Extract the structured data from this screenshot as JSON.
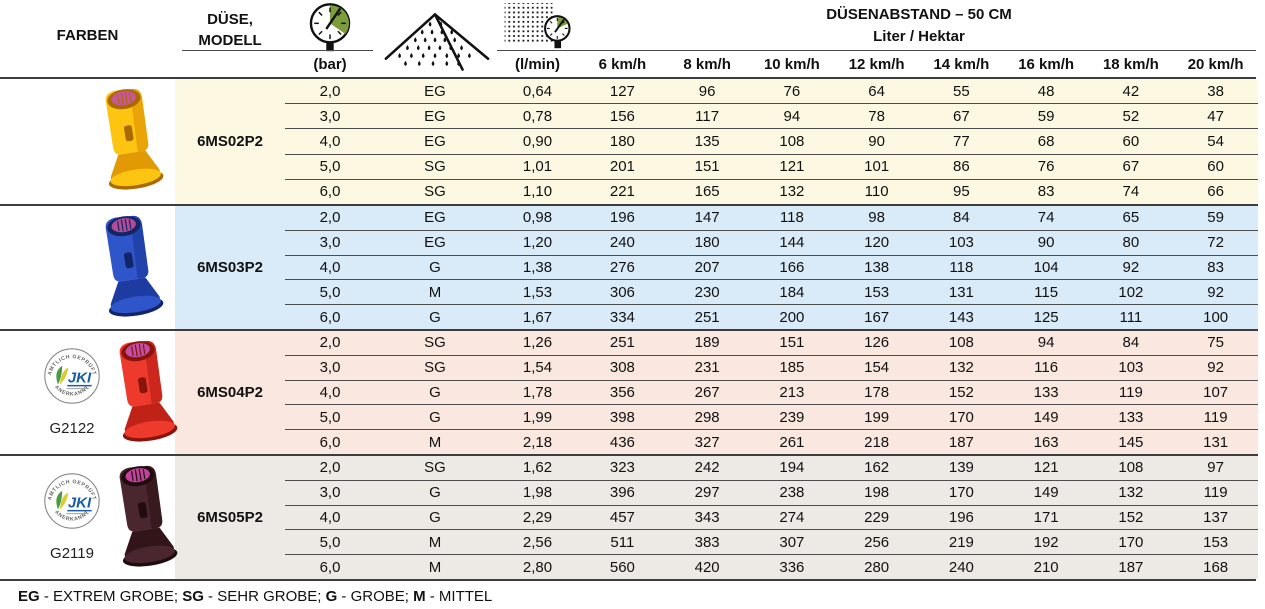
{
  "header": {
    "farben_label": "FARBEN",
    "duese_line1": "DÜSE,",
    "duese_line2": "MODELL",
    "pressure_unit": "(bar)",
    "flow_unit": "(l/min)",
    "spacing_title": "DÜSENABSTAND – 50 CM",
    "spacing_subtitle": "Liter / Hektar",
    "speed_labels": [
      "6 km/h",
      "8 km/h",
      "10 km/h",
      "12 km/h",
      "14 km/h",
      "16 km/h",
      "18 km/h",
      "20 km/h"
    ],
    "icons": {
      "pressure": "pressure-gauge-icon",
      "spray": "spray-cone-icon",
      "flow": "flow-rate-timer-icon"
    },
    "accent_green": "#7d9c3c"
  },
  "blocks": [
    {
      "model": "6MS02P2",
      "color_name": "yellow",
      "bg": "#fcf8e2",
      "nozzle": {
        "body": "#fdc511",
        "shade": "#e29a04",
        "dark": "#a96b00",
        "insert": "#c9559f"
      },
      "cert_code": "",
      "rows": [
        {
          "bar": "2,0",
          "size": "EG",
          "lmin": "0,64",
          "values": [
            "127",
            "96",
            "76",
            "64",
            "55",
            "48",
            "42",
            "38"
          ]
        },
        {
          "bar": "3,0",
          "size": "EG",
          "lmin": "0,78",
          "values": [
            "156",
            "117",
            "94",
            "78",
            "67",
            "59",
            "52",
            "47"
          ]
        },
        {
          "bar": "4,0",
          "size": "EG",
          "lmin": "0,90",
          "values": [
            "180",
            "135",
            "108",
            "90",
            "77",
            "68",
            "60",
            "54"
          ]
        },
        {
          "bar": "5,0",
          "size": "SG",
          "lmin": "1,01",
          "values": [
            "201",
            "151",
            "121",
            "101",
            "86",
            "76",
            "67",
            "60"
          ]
        },
        {
          "bar": "6,0",
          "size": "SG",
          "lmin": "1,10",
          "values": [
            "221",
            "165",
            "132",
            "110",
            "95",
            "83",
            "74",
            "66"
          ]
        }
      ]
    },
    {
      "model": "6MS03P2",
      "color_name": "blue",
      "bg": "#d9eaf8",
      "nozzle": {
        "body": "#2f55cb",
        "shade": "#1d3ba0",
        "dark": "#122566",
        "insert": "#b44b97"
      },
      "cert_code": "",
      "rows": [
        {
          "bar": "2,0",
          "size": "EG",
          "lmin": "0,98",
          "values": [
            "196",
            "147",
            "118",
            "98",
            "84",
            "74",
            "65",
            "59"
          ]
        },
        {
          "bar": "3,0",
          "size": "EG",
          "lmin": "1,20",
          "values": [
            "240",
            "180",
            "144",
            "120",
            "103",
            "90",
            "80",
            "72"
          ]
        },
        {
          "bar": "4,0",
          "size": "G",
          "lmin": "1,38",
          "values": [
            "276",
            "207",
            "166",
            "138",
            "118",
            "104",
            "92",
            "83"
          ]
        },
        {
          "bar": "5,0",
          "size": "M",
          "lmin": "1,53",
          "values": [
            "306",
            "230",
            "184",
            "153",
            "131",
            "115",
            "102",
            "92"
          ]
        },
        {
          "bar": "6,0",
          "size": "G",
          "lmin": "1,67",
          "values": [
            "334",
            "251",
            "200",
            "167",
            "143",
            "125",
            "111",
            "100"
          ]
        }
      ]
    },
    {
      "model": "6MS04P2",
      "color_name": "red",
      "bg": "#fae7df",
      "nozzle": {
        "body": "#ee3a2c",
        "shade": "#c02217",
        "dark": "#8a130c",
        "insert": "#c050a5"
      },
      "cert_code": "G2122",
      "rows": [
        {
          "bar": "2,0",
          "size": "SG",
          "lmin": "1,26",
          "values": [
            "251",
            "189",
            "151",
            "126",
            "108",
            "94",
            "84",
            "75"
          ]
        },
        {
          "bar": "3,0",
          "size": "SG",
          "lmin": "1,54",
          "values": [
            "308",
            "231",
            "185",
            "154",
            "132",
            "116",
            "103",
            "92"
          ]
        },
        {
          "bar": "4,0",
          "size": "G",
          "lmin": "1,78",
          "values": [
            "356",
            "267",
            "213",
            "178",
            "152",
            "133",
            "119",
            "107"
          ]
        },
        {
          "bar": "5,0",
          "size": "G",
          "lmin": "1,99",
          "values": [
            "398",
            "298",
            "239",
            "199",
            "170",
            "149",
            "133",
            "119"
          ]
        },
        {
          "bar": "6,0",
          "size": "M",
          "lmin": "2,18",
          "values": [
            "436",
            "327",
            "261",
            "218",
            "187",
            "163",
            "145",
            "131"
          ]
        }
      ]
    },
    {
      "model": "6MS05P2",
      "color_name": "dark-brown",
      "bg": "#edeae5",
      "nozzle": {
        "body": "#4a272e",
        "shade": "#321519",
        "dark": "#1e0c0f",
        "insert": "#c2439b"
      },
      "cert_code": "G2119",
      "rows": [
        {
          "bar": "2,0",
          "size": "SG",
          "lmin": "1,62",
          "values": [
            "323",
            "242",
            "194",
            "162",
            "139",
            "121",
            "108",
            "97"
          ]
        },
        {
          "bar": "3,0",
          "size": "G",
          "lmin": "1,98",
          "values": [
            "396",
            "297",
            "238",
            "198",
            "170",
            "149",
            "132",
            "119"
          ]
        },
        {
          "bar": "4,0",
          "size": "G",
          "lmin": "2,29",
          "values": [
            "457",
            "343",
            "274",
            "229",
            "196",
            "171",
            "152",
            "137"
          ]
        },
        {
          "bar": "5,0",
          "size": "M",
          "lmin": "2,56",
          "values": [
            "511",
            "383",
            "307",
            "256",
            "219",
            "192",
            "170",
            "153"
          ]
        },
        {
          "bar": "6,0",
          "size": "M",
          "lmin": "2,80",
          "values": [
            "560",
            "420",
            "336",
            "280",
            "240",
            "210",
            "187",
            "168"
          ]
        }
      ]
    }
  ],
  "cert_badge": {
    "name": "JKI",
    "arc_top": "AMTLICH GEPRÜFT",
    "arc_bottom": "ANERKANNT",
    "blue": "#1a5ca8",
    "leaf_green": "#4c9a3f",
    "leaf_yellow": "#d9cd2e"
  },
  "legend": {
    "entries": [
      {
        "abbr": "EG",
        "meaning": "EXTREM GROBE"
      },
      {
        "abbr": "SG",
        "meaning": "SEHR GROBE"
      },
      {
        "abbr": "G",
        "meaning": "GROBE"
      },
      {
        "abbr": "M",
        "meaning": "MITTEL"
      }
    ],
    "dash": " - ",
    "separator": "; "
  }
}
